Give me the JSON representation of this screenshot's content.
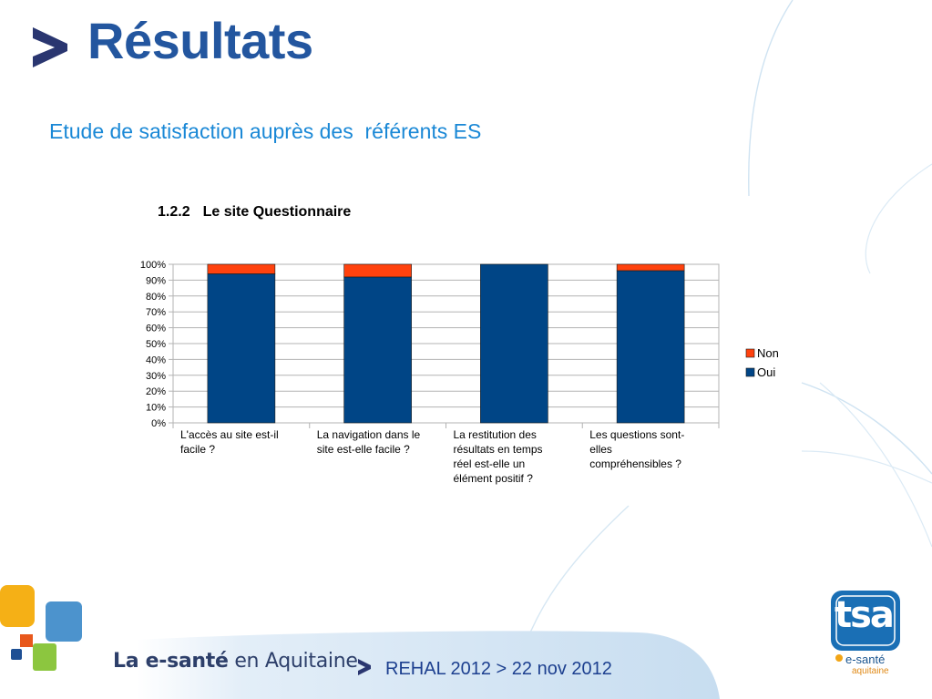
{
  "slide": {
    "title": "Résultats",
    "subtitle": "Etude de satisfaction auprès des  référents ES"
  },
  "chart_heading": {
    "number": "1.2.2",
    "text": "Le site Questionnaire"
  },
  "chart_data": {
    "type": "bar",
    "stacked": true,
    "categories": [
      [
        "L'accès au site est-il",
        "facile ?"
      ],
      [
        "La navigation dans le",
        "site est-elle facile ?"
      ],
      [
        "La restitution des",
        "résultats en temps",
        "réel est-elle un",
        "élément positif ?"
      ],
      [
        "Les questions sont-",
        "elles",
        "compréhensibles ?"
      ]
    ],
    "series": [
      {
        "name": "Oui",
        "color": "#004586",
        "values": [
          94,
          92,
          100,
          96
        ]
      },
      {
        "name": "Non",
        "color": "#ff420e",
        "values": [
          6,
          8,
          0,
          4
        ]
      }
    ],
    "yticks": [
      "0%",
      "10%",
      "20%",
      "30%",
      "40%",
      "50%",
      "60%",
      "70%",
      "80%",
      "90%",
      "100%"
    ],
    "ylim": [
      0,
      100
    ],
    "grid": true,
    "legend": "right",
    "legend_order": [
      "Non",
      "Oui"
    ]
  },
  "footer": {
    "brand_bold": "La e-santé",
    "brand_rest": " en Aquitaine",
    "event": "REHAL 2012 > 22 nov 2012"
  },
  "logo": {
    "main": "tsa",
    "line1": "e-santé",
    "line2": "aquitaine"
  },
  "colors": {
    "title": "#23569f",
    "subtitle": "#1a88d6",
    "arrow": "#2a3670",
    "oui": "#004586",
    "non": "#ff420e"
  }
}
